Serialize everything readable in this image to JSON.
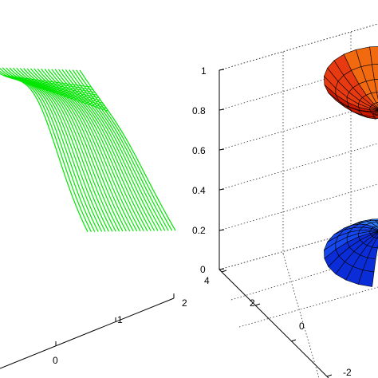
{
  "chart_data": [
    {
      "type": "surface-mesh",
      "title": "",
      "xlabel": "",
      "ylabel": "",
      "zlabel": "",
      "x_ticks": [
        "0",
        "1",
        "2"
      ],
      "mesh_color": "#00e600",
      "grid": false,
      "note_values": "visible surface heights peak near the back-left and fall off toward the front-right"
    },
    {
      "type": "surface",
      "title": "",
      "xlabel": "",
      "ylabel": "",
      "zlabel": "",
      "z_ticks": [
        "0",
        "0.2",
        "0.4",
        "0.6",
        "0.8",
        "1"
      ],
      "y_ticks": [
        "4",
        "2",
        "0",
        "-2"
      ],
      "zlim": [
        0,
        1
      ],
      "grid": true,
      "colormap_top": [
        "#cc1a00",
        "#e83a10",
        "#f26a10",
        "#f59010"
      ],
      "colormap_bottom": [
        "#0a2dd8",
        "#1648f0",
        "#2f78f5",
        "#4aa0f5"
      ]
    }
  ]
}
